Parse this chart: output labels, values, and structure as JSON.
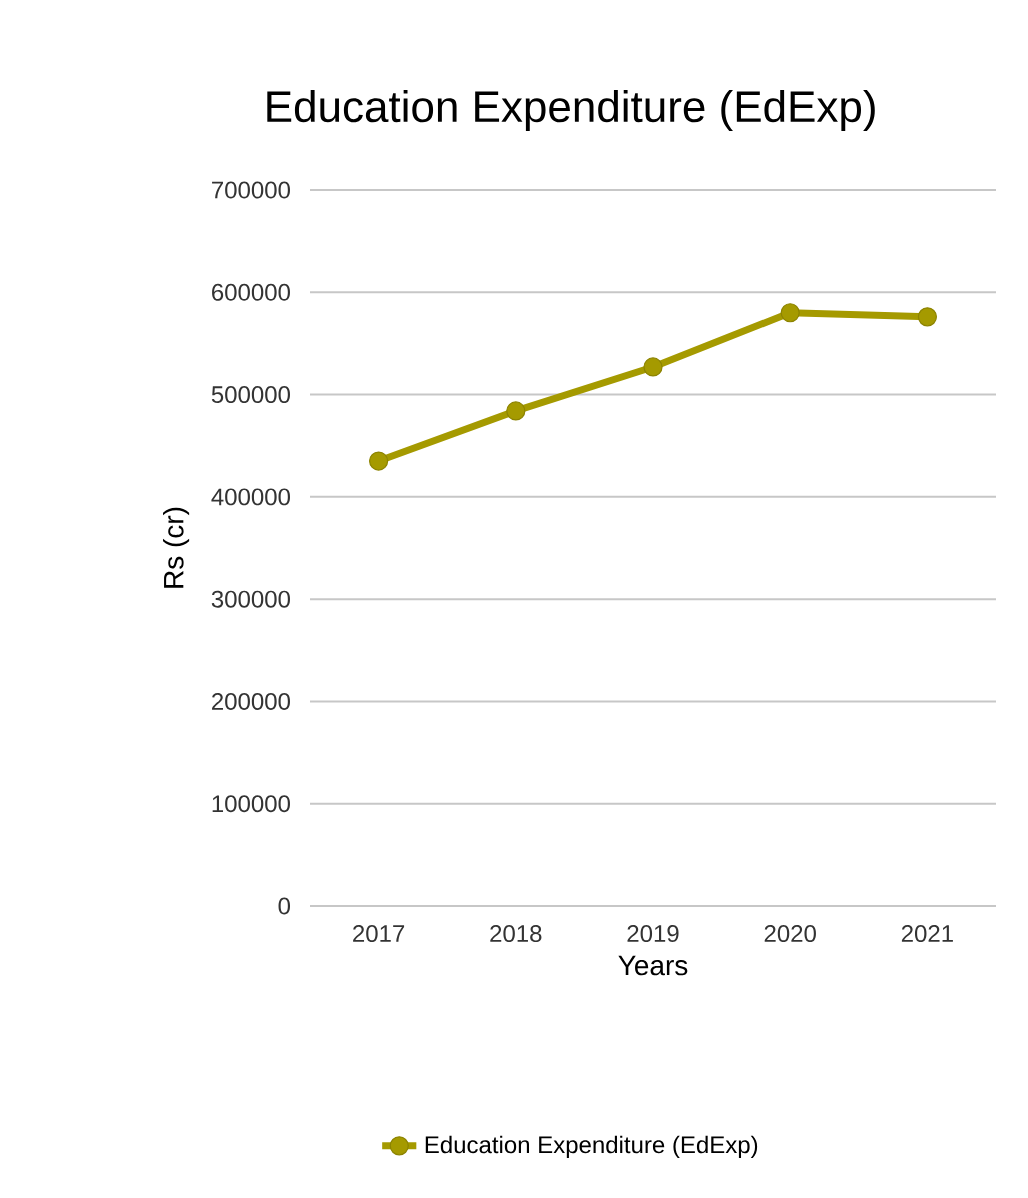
{
  "chart_data": {
    "type": "line",
    "title": "Education Expenditure (EdExp)",
    "xlabel": "Years",
    "ylabel": "Rs (cr)",
    "categories": [
      "2017",
      "2018",
      "2019",
      "2020",
      "2021"
    ],
    "series": [
      {
        "name": "Education Expenditure (EdExp)",
        "color": "#a59a00",
        "values": [
          435000,
          484000,
          527000,
          580000,
          576000
        ]
      }
    ],
    "ylim": [
      0,
      700000
    ],
    "yticks": [
      0,
      100000,
      200000,
      300000,
      400000,
      500000,
      600000,
      700000
    ],
    "grid": "y",
    "legend": "bottom",
    "marker": "circle",
    "line_style": "solid"
  }
}
